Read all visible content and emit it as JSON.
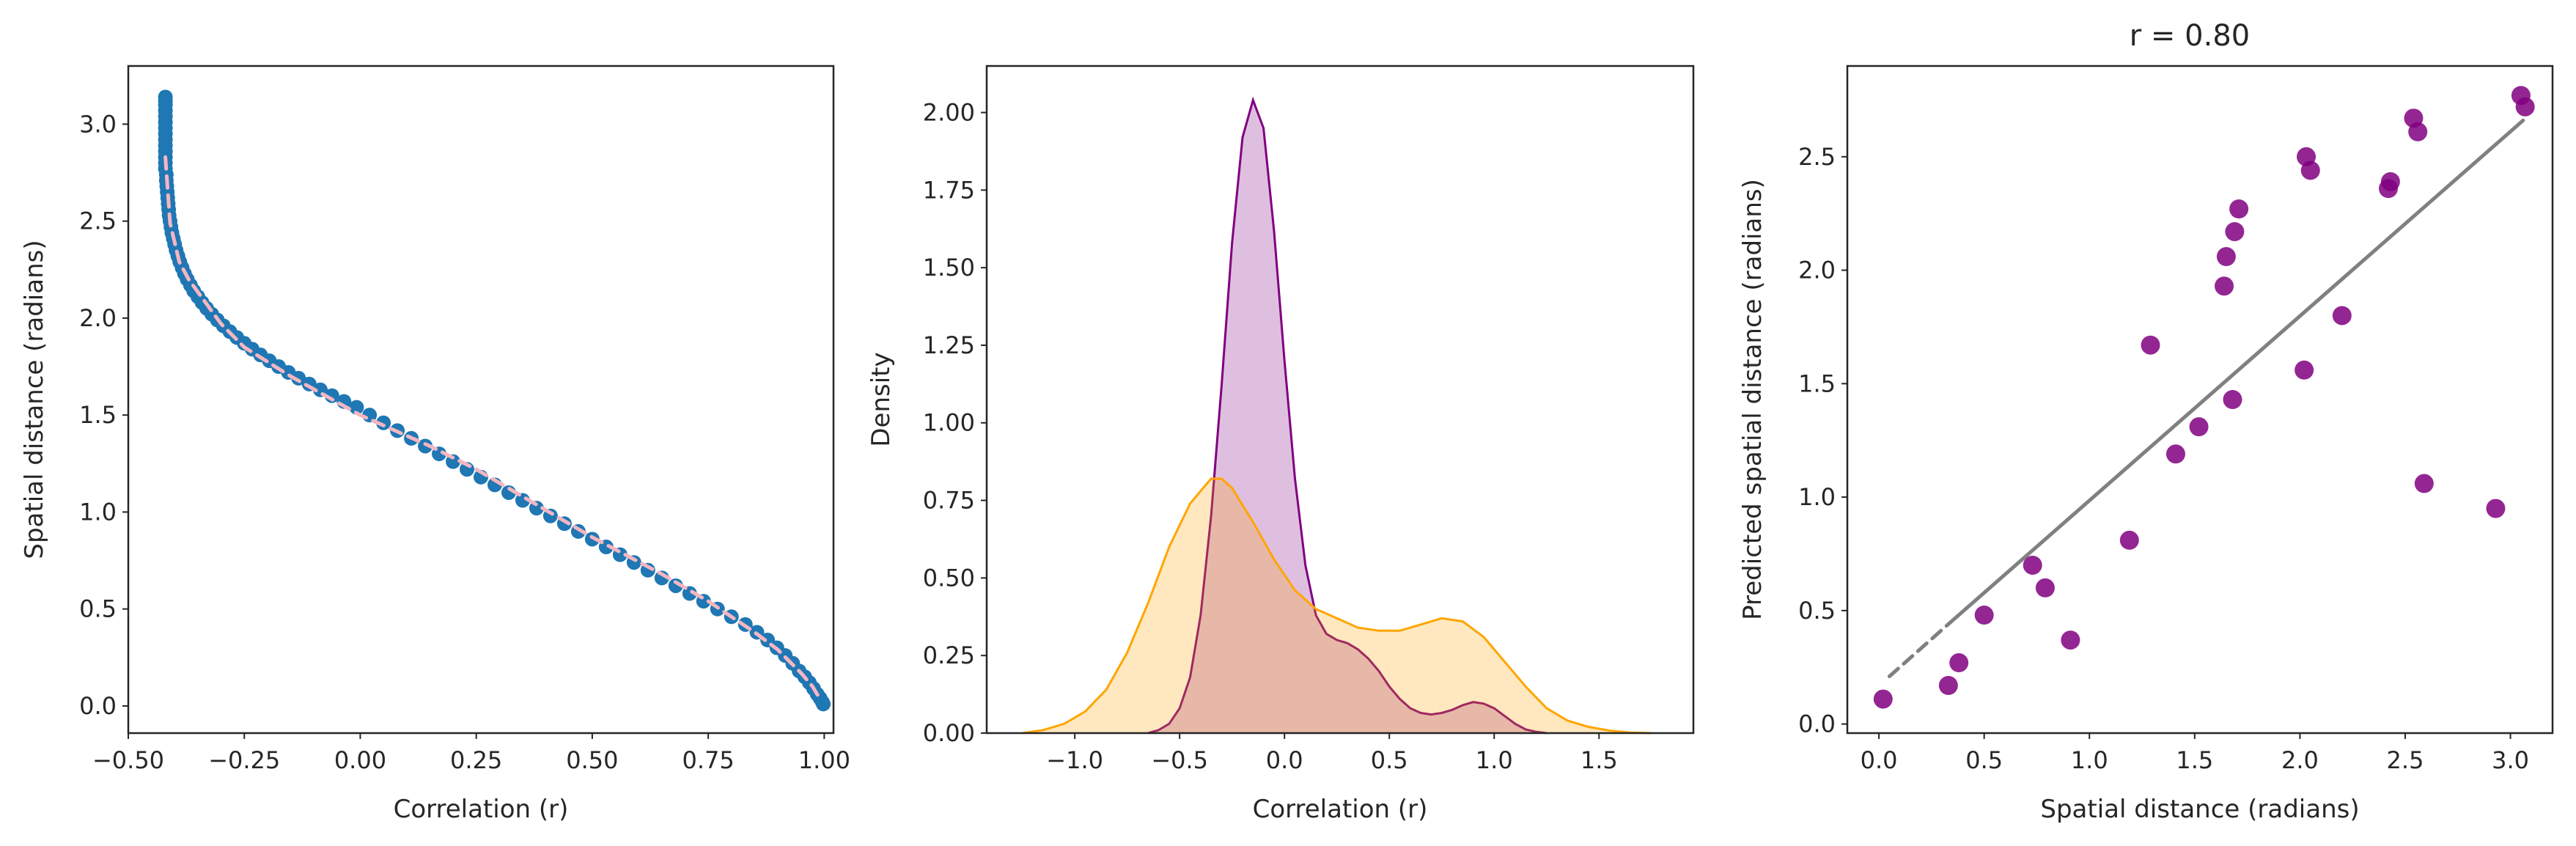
{
  "chart_data": [
    {
      "type": "scatter",
      "title": "",
      "xlabel": "Correlation (r)",
      "ylabel": "Spatial distance (radians)",
      "xlim": [
        -0.5,
        1.02
      ],
      "ylim": [
        -0.14,
        3.3
      ],
      "xticks": [
        "−0.50",
        "−0.25",
        "0.00",
        "0.25",
        "0.50",
        "0.75",
        "1.00"
      ],
      "xtick_values": [
        -0.5,
        -0.25,
        0.0,
        0.25,
        0.5,
        0.75,
        1.0
      ],
      "yticks": [
        "0.0",
        "0.5",
        "1.0",
        "1.5",
        "2.0",
        "2.5",
        "3.0"
      ],
      "ytick_values": [
        0.0,
        0.5,
        1.0,
        1.5,
        2.0,
        2.5,
        3.0
      ],
      "grid": false,
      "series": [
        {
          "kind": "scatter",
          "color": "#1f77b4",
          "points": [
            [
              -0.42,
              3.14
            ],
            [
              -0.42,
              3.12
            ],
            [
              -0.42,
              3.1
            ],
            [
              -0.42,
              3.07
            ],
            [
              -0.42,
              3.04
            ],
            [
              -0.42,
              3.01
            ],
            [
              -0.42,
              2.98
            ],
            [
              -0.42,
              2.95
            ],
            [
              -0.42,
              2.92
            ],
            [
              -0.42,
              2.89
            ],
            [
              -0.42,
              2.86
            ],
            [
              -0.42,
              2.83
            ],
            [
              -0.42,
              2.8
            ],
            [
              -0.42,
              2.77
            ],
            [
              -0.418,
              2.74
            ],
            [
              -0.418,
              2.71
            ],
            [
              -0.417,
              2.68
            ],
            [
              -0.416,
              2.65
            ],
            [
              -0.415,
              2.62
            ],
            [
              -0.414,
              2.59
            ],
            [
              -0.413,
              2.56
            ],
            [
              -0.412,
              2.53
            ],
            [
              -0.41,
              2.5
            ],
            [
              -0.408,
              2.47
            ],
            [
              -0.406,
              2.44
            ],
            [
              -0.403,
              2.41
            ],
            [
              -0.4,
              2.38
            ],
            [
              -0.397,
              2.35
            ],
            [
              -0.393,
              2.32
            ],
            [
              -0.389,
              2.29
            ],
            [
              -0.384,
              2.26
            ],
            [
              -0.379,
              2.23
            ],
            [
              -0.373,
              2.2
            ],
            [
              -0.366,
              2.17
            ],
            [
              -0.359,
              2.14
            ],
            [
              -0.35,
              2.11
            ],
            [
              -0.341,
              2.08
            ],
            [
              -0.331,
              2.05
            ],
            [
              -0.32,
              2.02
            ],
            [
              -0.308,
              1.99
            ],
            [
              -0.295,
              1.96
            ],
            [
              -0.281,
              1.93
            ],
            [
              -0.266,
              1.9
            ],
            [
              -0.25,
              1.87
            ],
            [
              -0.233,
              1.84
            ],
            [
              -0.215,
              1.81
            ],
            [
              -0.196,
              1.78
            ],
            [
              -0.176,
              1.75
            ],
            [
              -0.155,
              1.72
            ],
            [
              -0.133,
              1.69
            ],
            [
              -0.11,
              1.66
            ],
            [
              -0.086,
              1.63
            ],
            [
              -0.061,
              1.6
            ],
            [
              -0.035,
              1.57
            ],
            [
              -0.008,
              1.54
            ],
            [
              0.02,
              1.5
            ],
            [
              0.05,
              1.46
            ],
            [
              0.08,
              1.42
            ],
            [
              0.11,
              1.38
            ],
            [
              0.14,
              1.34
            ],
            [
              0.17,
              1.3
            ],
            [
              0.2,
              1.26
            ],
            [
              0.23,
              1.22
            ],
            [
              0.26,
              1.18
            ],
            [
              0.29,
              1.14
            ],
            [
              0.32,
              1.1
            ],
            [
              0.35,
              1.06
            ],
            [
              0.38,
              1.02
            ],
            [
              0.41,
              0.98
            ],
            [
              0.44,
              0.94
            ],
            [
              0.47,
              0.9
            ],
            [
              0.5,
              0.86
            ],
            [
              0.53,
              0.82
            ],
            [
              0.56,
              0.78
            ],
            [
              0.59,
              0.74
            ],
            [
              0.62,
              0.7
            ],
            [
              0.65,
              0.66
            ],
            [
              0.68,
              0.62
            ],
            [
              0.71,
              0.58
            ],
            [
              0.74,
              0.54
            ],
            [
              0.77,
              0.5
            ],
            [
              0.8,
              0.46
            ],
            [
              0.83,
              0.42
            ],
            [
              0.855,
              0.38
            ],
            [
              0.878,
              0.34
            ],
            [
              0.898,
              0.3
            ],
            [
              0.916,
              0.26
            ],
            [
              0.932,
              0.22
            ],
            [
              0.946,
              0.18
            ],
            [
              0.958,
              0.15
            ],
            [
              0.968,
              0.12
            ],
            [
              0.977,
              0.09
            ],
            [
              0.985,
              0.06
            ],
            [
              0.991,
              0.04
            ],
            [
              0.996,
              0.02
            ],
            [
              0.998,
              0.01
            ]
          ]
        },
        {
          "kind": "line",
          "style": "dashed",
          "color": "#f4b6c2",
          "points": [
            [
              -0.42,
              2.83
            ],
            [
              -0.41,
              2.49
            ],
            [
              -0.39,
              2.29
            ],
            [
              -0.37,
              2.2
            ],
            [
              -0.3,
              1.97
            ],
            [
              -0.25,
              1.85
            ],
            [
              -0.15,
              1.7
            ],
            [
              0.0,
              1.5
            ],
            [
              0.15,
              1.34
            ],
            [
              0.25,
              1.22
            ],
            [
              0.35,
              1.08
            ],
            [
              0.5,
              0.87
            ],
            [
              0.65,
              0.68
            ],
            [
              0.75,
              0.54
            ],
            [
              0.85,
              0.38
            ],
            [
              0.9,
              0.29
            ],
            [
              0.95,
              0.17
            ],
            [
              0.975,
              0.1
            ],
            [
              0.99,
              0.04
            ]
          ]
        }
      ]
    },
    {
      "type": "area",
      "title": "",
      "xlabel": "Correlation (r)",
      "ylabel": "Density",
      "xlim": [
        -1.42,
        1.95
      ],
      "ylim": [
        0,
        2.15
      ],
      "xticks": [
        "−1.0",
        "−0.5",
        "0.0",
        "0.5",
        "1.0",
        "1.5"
      ],
      "xtick_values": [
        -1.0,
        -0.5,
        0.0,
        0.5,
        1.0,
        1.5
      ],
      "yticks": [
        "0.00",
        "0.25",
        "0.50",
        "0.75",
        "1.00",
        "1.25",
        "1.50",
        "1.75",
        "2.00"
      ],
      "ytick_values": [
        0.0,
        0.25,
        0.5,
        0.75,
        1.0,
        1.25,
        1.5,
        1.75,
        2.0
      ],
      "grid": false,
      "series": [
        {
          "kind": "kde",
          "color": "#800080",
          "fill": "#e0bee0",
          "points": [
            [
              -0.65,
              0.0
            ],
            [
              -0.6,
              0.01
            ],
            [
              -0.55,
              0.03
            ],
            [
              -0.5,
              0.08
            ],
            [
              -0.45,
              0.18
            ],
            [
              -0.4,
              0.38
            ],
            [
              -0.35,
              0.7
            ],
            [
              -0.3,
              1.12
            ],
            [
              -0.25,
              1.58
            ],
            [
              -0.2,
              1.92
            ],
            [
              -0.15,
              2.04
            ],
            [
              -0.1,
              1.95
            ],
            [
              -0.05,
              1.62
            ],
            [
              0.0,
              1.2
            ],
            [
              0.05,
              0.82
            ],
            [
              0.1,
              0.54
            ],
            [
              0.15,
              0.38
            ],
            [
              0.2,
              0.32
            ],
            [
              0.25,
              0.3
            ],
            [
              0.3,
              0.29
            ],
            [
              0.35,
              0.27
            ],
            [
              0.4,
              0.24
            ],
            [
              0.45,
              0.2
            ],
            [
              0.5,
              0.15
            ],
            [
              0.55,
              0.11
            ],
            [
              0.6,
              0.08
            ],
            [
              0.65,
              0.065
            ],
            [
              0.7,
              0.06
            ],
            [
              0.75,
              0.065
            ],
            [
              0.8,
              0.075
            ],
            [
              0.85,
              0.09
            ],
            [
              0.9,
              0.1
            ],
            [
              0.95,
              0.095
            ],
            [
              1.0,
              0.08
            ],
            [
              1.05,
              0.055
            ],
            [
              1.1,
              0.03
            ],
            [
              1.15,
              0.012
            ],
            [
              1.2,
              0.004
            ],
            [
              1.25,
              0.0
            ]
          ]
        },
        {
          "kind": "kde",
          "color": "#ffa500",
          "fill": "#ffe7c0",
          "points": [
            [
              -1.25,
              0.0
            ],
            [
              -1.15,
              0.01
            ],
            [
              -1.05,
              0.03
            ],
            [
              -0.95,
              0.07
            ],
            [
              -0.85,
              0.14
            ],
            [
              -0.75,
              0.26
            ],
            [
              -0.65,
              0.42
            ],
            [
              -0.55,
              0.6
            ],
            [
              -0.45,
              0.74
            ],
            [
              -0.35,
              0.82
            ],
            [
              -0.3,
              0.82
            ],
            [
              -0.25,
              0.79
            ],
            [
              -0.15,
              0.68
            ],
            [
              -0.05,
              0.56
            ],
            [
              0.05,
              0.46
            ],
            [
              0.15,
              0.4
            ],
            [
              0.25,
              0.37
            ],
            [
              0.35,
              0.34
            ],
            [
              0.45,
              0.33
            ],
            [
              0.55,
              0.33
            ],
            [
              0.65,
              0.35
            ],
            [
              0.75,
              0.37
            ],
            [
              0.85,
              0.36
            ],
            [
              0.95,
              0.31
            ],
            [
              1.05,
              0.23
            ],
            [
              1.15,
              0.15
            ],
            [
              1.25,
              0.08
            ],
            [
              1.35,
              0.04
            ],
            [
              1.45,
              0.02
            ],
            [
              1.55,
              0.008
            ],
            [
              1.65,
              0.002
            ],
            [
              1.75,
              0.0
            ]
          ]
        }
      ]
    },
    {
      "type": "scatter",
      "title": "r = 0.80",
      "xlabel": "Spatial distance (radians)",
      "ylabel": "Predicted spatial distance (radians)",
      "xlim": [
        -0.15,
        3.2
      ],
      "ylim": [
        -0.04,
        2.9
      ],
      "xticks": [
        "0.0",
        "0.5",
        "1.0",
        "1.5",
        "2.0",
        "2.5",
        "3.0"
      ],
      "xtick_values": [
        0.0,
        0.5,
        1.0,
        1.5,
        2.0,
        2.5,
        3.0
      ],
      "yticks": [
        "0.0",
        "0.5",
        "1.0",
        "1.5",
        "2.0",
        "2.5"
      ],
      "ytick_values": [
        0.0,
        0.5,
        1.0,
        1.5,
        2.0,
        2.5
      ],
      "grid": false,
      "series": [
        {
          "kind": "scatter",
          "color": "#800080",
          "points": [
            [
              0.02,
              0.11
            ],
            [
              0.33,
              0.17
            ],
            [
              0.38,
              0.27
            ],
            [
              0.5,
              0.48
            ],
            [
              0.73,
              0.7
            ],
            [
              0.79,
              0.6
            ],
            [
              0.91,
              0.37
            ],
            [
              1.19,
              0.81
            ],
            [
              1.29,
              1.67
            ],
            [
              1.41,
              1.19
            ],
            [
              1.52,
              1.31
            ],
            [
              1.64,
              1.93
            ],
            [
              1.65,
              2.06
            ],
            [
              1.68,
              1.43
            ],
            [
              1.69,
              2.17
            ],
            [
              1.71,
              2.27
            ],
            [
              2.02,
              1.56
            ],
            [
              2.03,
              2.5
            ],
            [
              2.05,
              2.44
            ],
            [
              2.2,
              1.8
            ],
            [
              2.42,
              2.36
            ],
            [
              2.43,
              2.39
            ],
            [
              2.54,
              2.67
            ],
            [
              2.56,
              2.61
            ],
            [
              2.59,
              1.06
            ],
            [
              2.93,
              0.95
            ],
            [
              3.05,
              2.77
            ],
            [
              3.07,
              2.72
            ]
          ]
        },
        {
          "kind": "line",
          "style": "solid",
          "color": "#808080",
          "points": [
            [
              0.33,
              0.44
            ],
            [
              3.06,
              2.66
            ]
          ]
        },
        {
          "kind": "line",
          "style": "dashed",
          "color": "#808080",
          "points": [
            [
              0.05,
              0.21
            ],
            [
              0.33,
              0.44
            ]
          ]
        }
      ]
    }
  ]
}
